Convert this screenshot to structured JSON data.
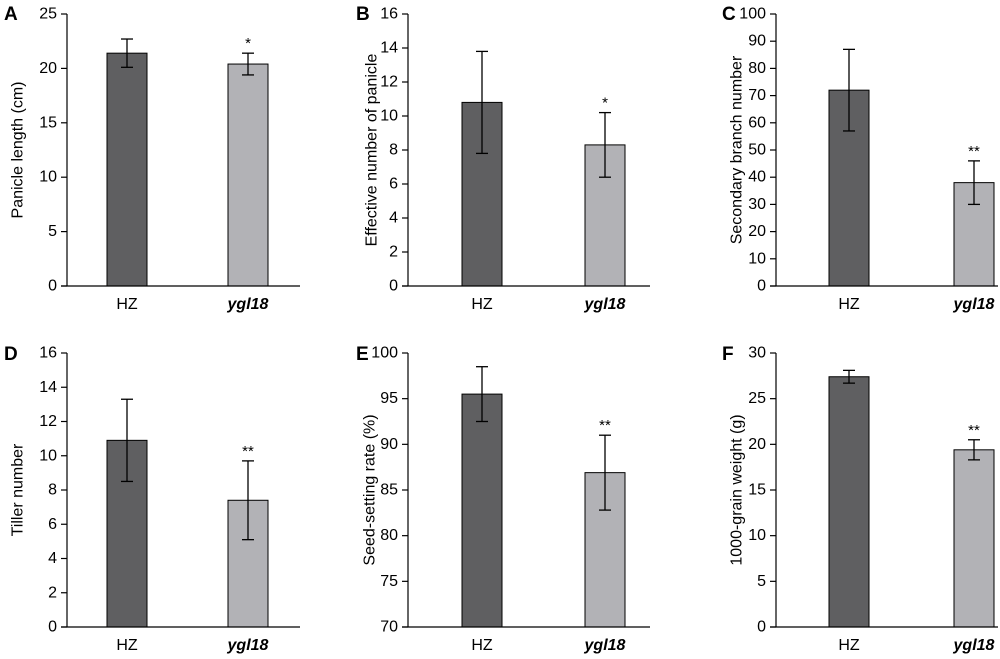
{
  "colors": {
    "hz_bar": "#5f5f61",
    "ygl18_bar": "#b2b2b6",
    "axis": "#000000"
  },
  "chart_data": [
    {
      "panel": "A",
      "type": "bar",
      "ylabel": "Panicle length (cm)",
      "ylim": [
        0,
        25
      ],
      "ticks": [
        0,
        5,
        10,
        15,
        20,
        25
      ],
      "categories": [
        "HZ",
        "ygl18"
      ],
      "italic": [
        false,
        true
      ],
      "values": [
        21.4,
        20.4
      ],
      "errors": [
        1.3,
        1.0
      ],
      "significance": [
        "",
        "*"
      ]
    },
    {
      "panel": "B",
      "type": "bar",
      "ylabel": "Effective number of panicle",
      "ylim": [
        0,
        16
      ],
      "ticks": [
        0,
        2,
        4,
        6,
        8,
        10,
        12,
        14,
        16
      ],
      "categories": [
        "HZ",
        "ygl18"
      ],
      "italic": [
        false,
        true
      ],
      "values": [
        10.8,
        8.3
      ],
      "errors": [
        3.0,
        1.9
      ],
      "significance": [
        "",
        "*"
      ]
    },
    {
      "panel": "C",
      "type": "bar",
      "ylabel": "Secondary branch number",
      "ylim": [
        0,
        100
      ],
      "ticks": [
        0,
        10,
        20,
        30,
        40,
        50,
        60,
        70,
        80,
        90,
        100
      ],
      "categories": [
        "HZ",
        "ygl18"
      ],
      "italic": [
        false,
        true
      ],
      "values": [
        72,
        38
      ],
      "errors": [
        15,
        8
      ],
      "significance": [
        "",
        "**"
      ]
    },
    {
      "panel": "D",
      "type": "bar",
      "ylabel": "Tiller number",
      "ylim": [
        0,
        16
      ],
      "ticks": [
        0,
        2,
        4,
        6,
        8,
        10,
        12,
        14,
        16
      ],
      "categories": [
        "HZ",
        "ygl18"
      ],
      "italic": [
        false,
        true
      ],
      "values": [
        10.9,
        7.4
      ],
      "errors": [
        2.4,
        2.3
      ],
      "significance": [
        "",
        "**"
      ]
    },
    {
      "panel": "E",
      "type": "bar",
      "ylabel": "Seed-setting rate (%)",
      "ylim": [
        70,
        100
      ],
      "ticks": [
        70,
        75,
        80,
        85,
        90,
        95,
        100
      ],
      "categories": [
        "HZ",
        "ygl18"
      ],
      "italic": [
        false,
        true
      ],
      "values": [
        95.5,
        86.9
      ],
      "errors": [
        3.0,
        4.1
      ],
      "significance": [
        "",
        "**"
      ]
    },
    {
      "panel": "F",
      "type": "bar",
      "ylabel": "1000-grain weight (g)",
      "ylim": [
        0,
        30
      ],
      "ticks": [
        0,
        5,
        10,
        15,
        20,
        25,
        30
      ],
      "categories": [
        "HZ",
        "ygl18"
      ],
      "italic": [
        false,
        true
      ],
      "values": [
        27.4,
        19.4
      ],
      "errors": [
        0.7,
        1.1
      ],
      "significance": [
        "",
        "**"
      ]
    }
  ]
}
